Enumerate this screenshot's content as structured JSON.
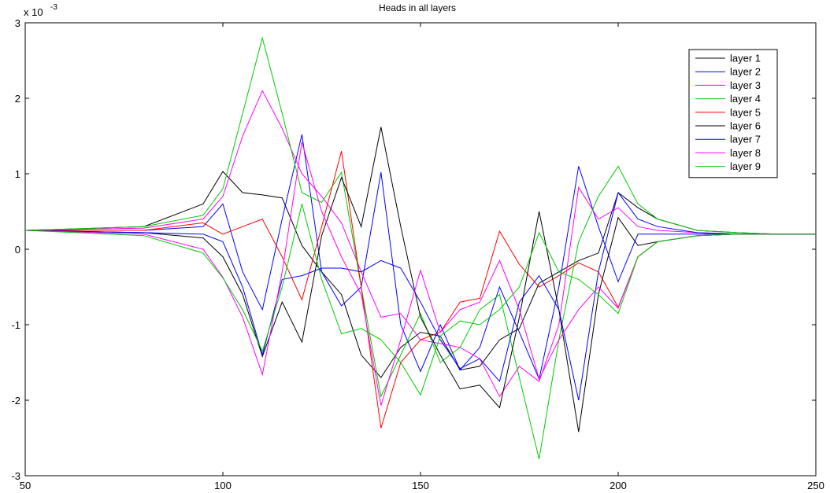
{
  "chart_data": {
    "type": "line",
    "title": "Heads in all layers",
    "xlabel": "",
    "ylabel": "",
    "xlim": [
      50,
      250
    ],
    "ylim": [
      -3,
      3
    ],
    "y_multiplier": "x 10",
    "y_exponent": "-3",
    "x_ticks": [
      "50",
      "100",
      "150",
      "200",
      "250"
    ],
    "y_ticks": [
      "-3",
      "-2",
      "-1",
      "0",
      "1",
      "2",
      "3"
    ],
    "legend_position": "top-right",
    "series": [
      {
        "name": "layer 1",
        "color": "#000000",
        "x": [
          50,
          80,
          95,
          100,
          105,
          110,
          115,
          120,
          125,
          130,
          135,
          140,
          145,
          150,
          155,
          160,
          165,
          170,
          175,
          180,
          185,
          190,
          195,
          200,
          205,
          210,
          220,
          230,
          240,
          250
        ],
        "y": [
          0.25,
          0.3,
          0.6,
          1.03,
          0.75,
          0.72,
          0.68,
          0.05,
          -0.3,
          -0.6,
          -1.4,
          -1.7,
          -1.3,
          -1.1,
          -1.15,
          -1.6,
          -1.55,
          -1.2,
          -1.05,
          -0.45,
          -0.3,
          -0.15,
          -0.05,
          0.75,
          0.55,
          0.4,
          0.25,
          0.22,
          0.2,
          0.2
        ]
      },
      {
        "name": "layer 2",
        "color": "#0000ff",
        "x": [
          50,
          80,
          95,
          100,
          105,
          110,
          115,
          120,
          125,
          130,
          135,
          140,
          145,
          150,
          155,
          160,
          165,
          170,
          175,
          180,
          185,
          190,
          195,
          200,
          205,
          210,
          220,
          230,
          240,
          250
        ],
        "y": [
          0.25,
          0.25,
          0.3,
          0.6,
          -0.3,
          -0.8,
          0.4,
          1.52,
          -0.3,
          -0.75,
          -0.5,
          1.02,
          -1.0,
          -1.62,
          -1.0,
          -1.6,
          -1.3,
          -0.5,
          -1.1,
          -1.72,
          -0.5,
          1.1,
          0.3,
          -0.43,
          0.2,
          0.2,
          0.2,
          0.2,
          0.2,
          0.2
        ]
      },
      {
        "name": "layer 3",
        "color": "#ff00ff",
        "x": [
          50,
          80,
          95,
          100,
          105,
          110,
          115,
          120,
          125,
          130,
          135,
          140,
          145,
          150,
          155,
          160,
          165,
          170,
          175,
          180,
          185,
          190,
          195,
          200,
          205,
          210,
          220,
          230,
          240,
          250
        ],
        "y": [
          0.25,
          0.28,
          0.4,
          0.7,
          1.5,
          2.1,
          1.6,
          1.0,
          0.7,
          0.35,
          -0.3,
          -0.9,
          -0.85,
          -1.2,
          -1.25,
          -1.3,
          -1.45,
          -1.95,
          -1.55,
          -1.75,
          -1.0,
          0.82,
          0.4,
          0.55,
          0.3,
          0.25,
          0.22,
          0.2,
          0.2,
          0.2
        ]
      },
      {
        "name": "layer 4",
        "color": "#00cc00",
        "x": [
          50,
          80,
          95,
          100,
          105,
          110,
          115,
          120,
          125,
          130,
          135,
          140,
          145,
          150,
          155,
          160,
          165,
          170,
          175,
          180,
          185,
          190,
          195,
          200,
          205,
          210,
          220,
          230,
          240,
          250
        ],
        "y": [
          0.25,
          0.3,
          0.45,
          0.8,
          1.8,
          2.8,
          1.8,
          0.75,
          0.62,
          1.02,
          -0.5,
          -1.95,
          -1.4,
          -0.85,
          -1.5,
          -1.3,
          -0.8,
          -0.6,
          -1.7,
          -2.78,
          -1.2,
          0.1,
          0.7,
          1.1,
          0.6,
          0.4,
          0.25,
          0.22,
          0.2,
          0.2
        ]
      },
      {
        "name": "layer 5",
        "color": "#ff0000",
        "x": [
          50,
          80,
          95,
          100,
          105,
          110,
          115,
          120,
          125,
          130,
          135,
          140,
          145,
          150,
          155,
          160,
          165,
          170,
          175,
          180,
          185,
          190,
          195,
          200,
          205,
          210,
          220,
          230,
          240,
          250
        ],
        "y": [
          0.25,
          0.25,
          0.35,
          0.2,
          0.3,
          0.4,
          -0.1,
          -0.67,
          0.3,
          1.3,
          -0.5,
          -2.37,
          -1.5,
          -1.2,
          -1.1,
          -0.7,
          -0.65,
          0.24,
          -0.2,
          -0.5,
          -0.35,
          -0.18,
          -0.3,
          -0.77,
          -0.1,
          0.1,
          0.18,
          0.2,
          0.2,
          0.2
        ]
      },
      {
        "name": "layer 6",
        "color": "#000000",
        "x": [
          50,
          80,
          95,
          100,
          105,
          110,
          115,
          120,
          125,
          130,
          135,
          140,
          145,
          150,
          155,
          160,
          165,
          170,
          175,
          180,
          185,
          190,
          195,
          200,
          205,
          210,
          220,
          230,
          240,
          250
        ],
        "y": [
          0.25,
          0.22,
          0.15,
          -0.1,
          -0.6,
          -1.42,
          -0.7,
          -1.23,
          0.18,
          0.95,
          0.3,
          1.62,
          0.3,
          -0.9,
          -1.4,
          -1.85,
          -1.8,
          -2.1,
          -0.9,
          0.5,
          -0.8,
          -2.42,
          -0.6,
          0.42,
          0.05,
          0.1,
          0.18,
          0.2,
          0.2,
          0.2
        ]
      },
      {
        "name": "layer 7",
        "color": "#0000ff",
        "x": [
          50,
          80,
          95,
          100,
          105,
          110,
          115,
          120,
          125,
          130,
          135,
          140,
          145,
          150,
          155,
          160,
          165,
          170,
          175,
          180,
          185,
          190,
          195,
          200,
          205,
          210,
          220,
          230,
          240,
          250
        ],
        "y": [
          0.25,
          0.22,
          0.2,
          0.1,
          -0.5,
          -1.4,
          -0.4,
          -0.35,
          -0.25,
          -0.25,
          -0.3,
          -0.15,
          -0.25,
          -0.7,
          -1.2,
          -1.58,
          -1.45,
          -1.75,
          -0.7,
          -0.35,
          -0.8,
          -2.0,
          -0.3,
          0.75,
          0.4,
          0.3,
          0.22,
          0.2,
          0.2,
          0.2
        ]
      },
      {
        "name": "layer 8",
        "color": "#ff00ff",
        "x": [
          50,
          80,
          95,
          100,
          105,
          110,
          115,
          120,
          125,
          130,
          135,
          140,
          145,
          150,
          155,
          160,
          165,
          170,
          175,
          180,
          185,
          190,
          195,
          200,
          205,
          210,
          220,
          230,
          240,
          250
        ],
        "y": [
          0.25,
          0.2,
          0.0,
          -0.37,
          -0.9,
          -1.66,
          -0.3,
          1.42,
          0.5,
          -0.1,
          -0.6,
          -2.07,
          -1.2,
          -0.28,
          -1.1,
          -0.8,
          -0.7,
          -0.15,
          -0.8,
          -1.72,
          -1.2,
          -0.8,
          -0.5,
          -0.78,
          -0.1,
          0.1,
          0.18,
          0.2,
          0.2,
          0.2
        ]
      },
      {
        "name": "layer 9",
        "color": "#00cc00",
        "x": [
          50,
          80,
          95,
          100,
          105,
          110,
          115,
          120,
          125,
          130,
          135,
          140,
          145,
          150,
          155,
          160,
          165,
          170,
          175,
          180,
          185,
          190,
          195,
          200,
          205,
          210,
          220,
          230,
          240,
          250
        ],
        "y": [
          0.25,
          0.18,
          -0.05,
          -0.38,
          -0.8,
          -1.35,
          -0.5,
          0.6,
          -0.4,
          -1.12,
          -1.05,
          -1.2,
          -1.5,
          -1.93,
          -1.15,
          -0.95,
          -1.0,
          -0.8,
          -0.5,
          0.22,
          -0.3,
          -0.4,
          -0.6,
          -0.85,
          -0.1,
          0.1,
          0.18,
          0.2,
          0.2,
          0.2
        ]
      }
    ]
  }
}
